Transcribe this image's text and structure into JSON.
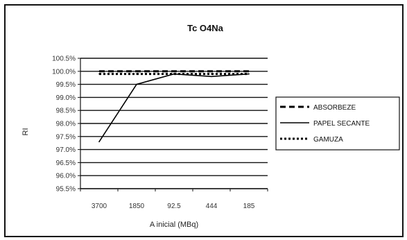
{
  "chart_data": {
    "type": "line",
    "title": "Tc O4Na",
    "xlabel": "A inicial (MBq)",
    "ylabel": "RI",
    "categories": [
      "3700",
      "1850",
      "92.5",
      "444",
      "185"
    ],
    "ylim": [
      95.5,
      100.5
    ],
    "yticks": [
      "100.5%",
      "100.0%",
      "99.5%",
      "99.0%",
      "98.5%",
      "98.0%",
      "97.5%",
      "97.0%",
      "96.5%",
      "96.0%",
      "95.5%"
    ],
    "grid": true,
    "legend_position": "right",
    "series": [
      {
        "name": "ABSORBEZE",
        "style": "dashed",
        "values": [
          100.0,
          100.0,
          100.0,
          100.0,
          100.0
        ]
      },
      {
        "name": "PAPEL SECANTE",
        "style": "solid",
        "values": [
          97.3,
          99.5,
          99.9,
          99.8,
          99.9
        ]
      },
      {
        "name": "GAMUZA",
        "style": "dotted",
        "values": [
          99.9,
          99.9,
          99.9,
          99.9,
          99.9
        ]
      }
    ]
  }
}
